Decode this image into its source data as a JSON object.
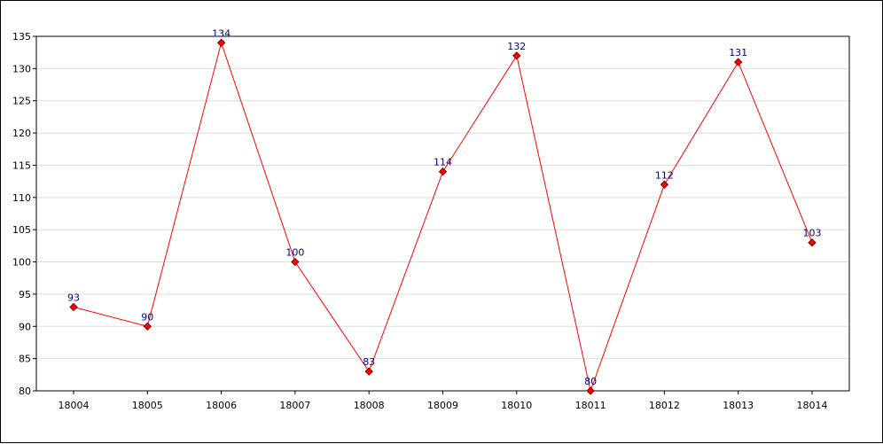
{
  "chart_data": {
    "type": "line",
    "categories": [
      "18004",
      "18005",
      "18006",
      "18007",
      "18008",
      "18009",
      "18010",
      "18011",
      "18012",
      "18013",
      "18014"
    ],
    "series": [
      {
        "values": [
          93,
          90,
          134,
          100,
          83,
          114,
          132,
          80,
          112,
          131,
          103
        ]
      }
    ],
    "ylim": [
      80,
      135
    ],
    "yticks": [
      80,
      85,
      90,
      95,
      100,
      105,
      110,
      115,
      120,
      125,
      130,
      135
    ],
    "grid": true,
    "legend": "none",
    "colors": {
      "line": "#ff0000",
      "marker_fill": "#ff0000",
      "marker_stroke": "#800000",
      "label": "#000080",
      "grid": "#dddddd"
    }
  }
}
